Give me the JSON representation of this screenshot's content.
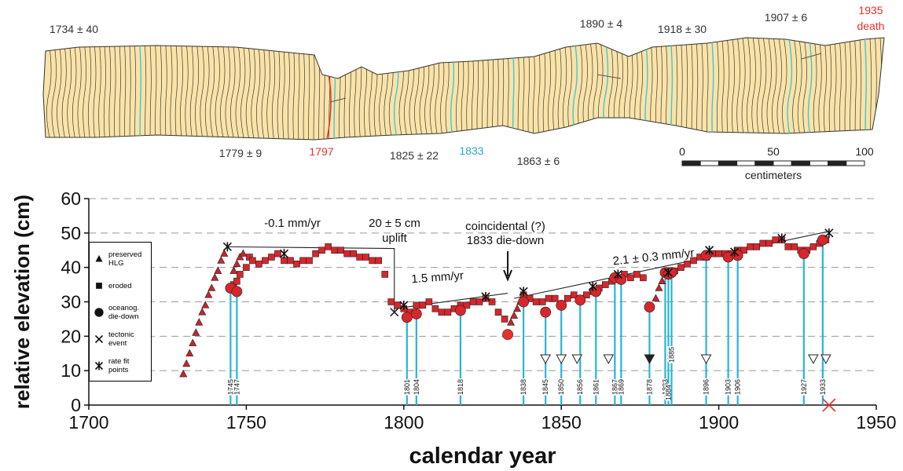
{
  "chart_data": {
    "type": "scatter",
    "xlabel": "calendar year",
    "ylabel": "relative elevation (cm)",
    "xlim": [
      1700,
      1950
    ],
    "ylim": [
      0,
      60
    ],
    "xticks": [
      1700,
      1750,
      1800,
      1850,
      1900,
      1950
    ],
    "yticks": [
      0,
      10,
      20,
      30,
      40,
      50,
      60
    ],
    "grid": true,
    "series": [
      {
        "name": "preserved HLG",
        "marker": "triangle",
        "color": "#c8242b",
        "x": [
          1730,
          1731,
          1732,
          1733,
          1734,
          1735,
          1736,
          1737,
          1738,
          1739,
          1740,
          1741,
          1742,
          1743,
          1746,
          1747,
          1748,
          1749,
          1834,
          1835,
          1836,
          1837,
          1880,
          1881,
          1882
        ],
        "values": [
          9,
          12,
          15,
          18,
          21,
          24,
          27,
          29,
          32,
          34,
          37,
          39,
          42,
          44,
          39,
          41,
          43,
          44,
          24,
          26,
          28,
          30,
          31,
          34,
          36
        ]
      },
      {
        "name": "eroded",
        "marker": "square",
        "color": "#d7262c",
        "x": [
          1746,
          1747,
          1748,
          1750,
          1751,
          1752,
          1754,
          1756,
          1758,
          1760,
          1762,
          1764,
          1766,
          1768,
          1770,
          1772,
          1774,
          1776,
          1778,
          1780,
          1782,
          1784,
          1786,
          1788,
          1790,
          1792,
          1794,
          1796,
          1798,
          1800,
          1802,
          1804,
          1806,
          1808,
          1810,
          1812,
          1814,
          1816,
          1818,
          1820,
          1822,
          1824,
          1826,
          1828,
          1830,
          1832,
          1838,
          1840,
          1842,
          1844,
          1846,
          1848,
          1850,
          1852,
          1854,
          1856,
          1858,
          1860,
          1862,
          1864,
          1866,
          1868,
          1870,
          1872,
          1874,
          1876,
          1886,
          1888,
          1890,
          1892,
          1894,
          1896,
          1898,
          1900,
          1902,
          1904,
          1906,
          1908,
          1910,
          1912,
          1914,
          1916,
          1918,
          1920,
          1922,
          1924,
          1926,
          1928,
          1930,
          1932,
          1934
        ],
        "values": [
          35,
          36,
          38,
          40,
          43,
          42,
          41,
          42,
          43,
          44,
          42,
          42,
          41,
          42,
          42,
          44,
          45,
          46,
          45,
          45,
          44,
          44,
          43,
          43,
          42,
          42,
          38,
          30,
          29,
          28,
          27,
          29,
          29,
          30,
          28,
          27,
          27,
          28,
          29,
          29,
          30,
          30,
          31,
          30,
          27,
          25,
          32,
          31,
          30,
          30,
          31,
          31,
          29,
          31,
          32,
          31,
          32,
          33,
          34,
          35,
          36,
          37,
          38,
          37,
          38,
          37,
          39,
          40,
          41,
          42,
          43,
          43,
          44,
          44,
          44,
          44,
          45,
          45,
          46,
          46,
          47,
          47,
          48,
          48,
          46,
          46,
          45,
          45,
          46,
          47,
          48
        ]
      },
      {
        "name": "oceanog. die-down",
        "marker": "circle",
        "color": "#d7262c",
        "stems": true,
        "stem_color": "#29b3d8",
        "x": [
          1745,
          1747,
          1801,
          1804,
          1818,
          1838,
          1845,
          1850,
          1856,
          1861,
          1867,
          1869,
          1878,
          1883,
          1884,
          1885,
          1896,
          1903,
          1906,
          1927,
          1933
        ],
        "values": [
          34,
          33,
          25.5,
          26.5,
          27.5,
          30,
          27,
          29,
          30.5,
          33,
          37,
          36.5,
          28.5,
          38.5,
          38,
          38.5,
          43.5,
          43,
          43.5,
          44,
          48
        ]
      },
      {
        "marker": "circle",
        "color": "#e8312a",
        "x": [
          1833
        ],
        "values": [
          20.5
        ]
      },
      {
        "name": "tectonic event",
        "marker": "x",
        "color": "#222222",
        "x": [
          1797,
          1833,
          1935
        ],
        "values": [
          27,
          20.5,
          0
        ],
        "colors": [
          "#222222",
          "#e8312a",
          "#e8312a"
        ]
      },
      {
        "name": "rate fit points",
        "marker": "asterisk",
        "color": "#111111",
        "x": [
          1744,
          1762,
          1800,
          1826,
          1838,
          1860,
          1868,
          1884,
          1897,
          1905,
          1920,
          1935
        ],
        "values": [
          46,
          44,
          29,
          31.5,
          33,
          34.5,
          38,
          38.5,
          45,
          44.5,
          48.5,
          50
        ]
      },
      {
        "marker": "tri-down",
        "color": "#ffffff",
        "x": [
          1845,
          1850,
          1855,
          1865,
          1896,
          1930,
          1934
        ],
        "values": [
          13.5,
          13.5,
          13.5,
          13.5,
          13.5,
          13.5,
          13.5
        ]
      },
      {
        "marker": "tri-down",
        "color": "#222222",
        "x": [
          1878
        ],
        "values": [
          13.5
        ]
      }
    ],
    "fit_lines": [
      {
        "x": [
          1744,
          1797,
          1797
        ],
        "values": [
          46,
          45.5,
          27
        ]
      },
      {
        "x": [
          1797,
          1833
        ],
        "values": [
          28,
          32.5
        ]
      },
      {
        "x": [
          1835,
          1935
        ],
        "values": [
          31,
          50.5
        ]
      }
    ],
    "annotations": [
      "-0.1 mm/yr",
      "20 ± 5 cm",
      "uplift",
      "1.5 mm/yr",
      "coincidental (?)",
      "1833 die-down",
      "2.1 ± 0.3 mm/yr"
    ],
    "coral_labels": [
      "1734 ± 40",
      "1779 ± 9",
      "1797",
      "1825 ± 22",
      "1833",
      "1863 ± 6",
      "1890 ± 4",
      "1918 ± 30",
      "1907 ± 6",
      "1935",
      "death"
    ],
    "scale_bar": {
      "ticks": [
        0,
        50,
        100
      ],
      "label": "centimeters"
    }
  }
}
